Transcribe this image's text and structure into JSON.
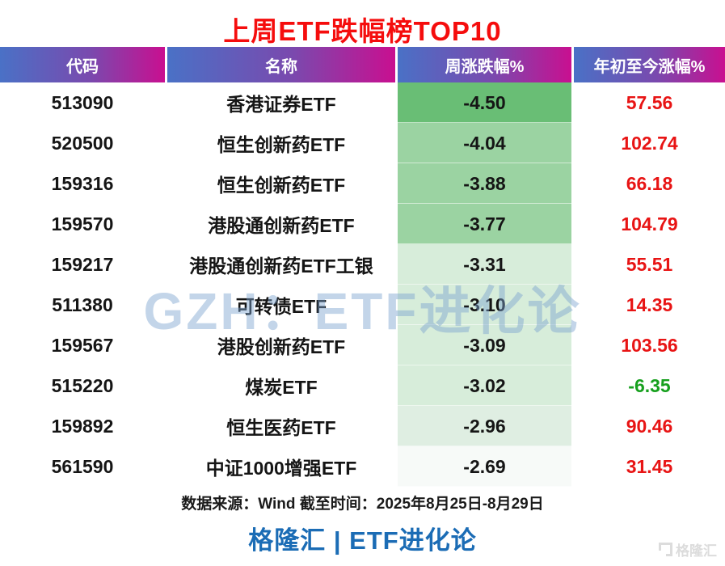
{
  "title": {
    "text": "上周ETF跌幅榜TOP10",
    "color": "#f50d0d"
  },
  "table": {
    "columns": [
      "代码",
      "名称",
      "周涨跌幅%",
      "年初至今涨幅%"
    ],
    "rows": [
      {
        "code": "513090",
        "name": "香港证券ETF",
        "week": "-4.50",
        "ytd": "57.56",
        "week_bg": "#69be75"
      },
      {
        "code": "520500",
        "name": "恒生创新药ETF",
        "week": "-4.04",
        "ytd": "102.74",
        "week_bg": "#9bd3a2"
      },
      {
        "code": "159316",
        "name": "恒生创新药ETF",
        "week": "-3.88",
        "ytd": "66.18",
        "week_bg": "#9bd3a2"
      },
      {
        "code": "159570",
        "name": "港股通创新药ETF",
        "week": "-3.77",
        "ytd": "104.79",
        "week_bg": "#9bd3a2"
      },
      {
        "code": "159217",
        "name": "港股通创新药ETF工银",
        "week": "-3.31",
        "ytd": "55.51",
        "week_bg": "#d7edda"
      },
      {
        "code": "511380",
        "name": "可转债ETF",
        "week": "-3.10",
        "ytd": "14.35",
        "week_bg": "#d7edda"
      },
      {
        "code": "159567",
        "name": "港股创新药ETF",
        "week": "-3.09",
        "ytd": "103.56",
        "week_bg": "#d7edda"
      },
      {
        "code": "515220",
        "name": "煤炭ETF",
        "week": "-3.02",
        "ytd": "-6.35",
        "week_bg": "#d7edda"
      },
      {
        "code": "159892",
        "name": "恒生医药ETF",
        "week": "-2.96",
        "ytd": "90.46",
        "week_bg": "#dfeee2"
      },
      {
        "code": "561590",
        "name": "中证1000增强ETF",
        "week": "-2.69",
        "ytd": "31.45",
        "week_bg": "#f7faf8"
      }
    ]
  },
  "footer": {
    "source": "数据来源：Wind 截至时间：2025年8月25日-8月29日",
    "brand": "格隆汇 | ETF进化论"
  },
  "watermarks": {
    "center": "GZH：ETF进化论",
    "corner_text": "格隆汇"
  },
  "colors": {
    "title_red": "#f50d0d",
    "header_gradient_left": "#4a71c6",
    "header_gradient_right": "#c90f90",
    "value_red": "#e81414",
    "value_green": "#17a01e",
    "brand_blue": "#1b6cb5",
    "heat_dark_green": "#69be75",
    "heat_mid_green": "#9bd3a2",
    "heat_light_green": "#d7edda",
    "heat_near_white": "#f7faf8"
  },
  "chart_data": {
    "type": "table",
    "title": "上周ETF跌幅榜TOP10",
    "columns": [
      "代码",
      "名称",
      "周涨跌幅%",
      "年初至今涨幅%"
    ],
    "rows": [
      [
        "513090",
        "香港证券ETF",
        -4.5,
        57.56
      ],
      [
        "520500",
        "恒生创新药ETF",
        -4.04,
        102.74
      ],
      [
        "159316",
        "恒生创新药ETF",
        -3.88,
        66.18
      ],
      [
        "159570",
        "港股通创新药ETF",
        -3.77,
        104.79
      ],
      [
        "159217",
        "港股通创新药ETF工银",
        -3.31,
        55.51
      ],
      [
        "511380",
        "可转债ETF",
        -3.1,
        14.35
      ],
      [
        "159567",
        "港股创新药ETF",
        -3.09,
        103.56
      ],
      [
        "515220",
        "煤炭ETF",
        -3.02,
        -6.35
      ],
      [
        "159892",
        "恒生医药ETF",
        -2.96,
        90.46
      ],
      [
        "561590",
        "中证1000增强ETF",
        -2.69,
        31.45
      ]
    ],
    "notes": "周涨跌幅% column uses a green heatmap: darker = larger weekly decline; 年初至今涨幅% shown red when positive, green when negative",
    "source": "数据来源：Wind 截至时间：2025年8月25日-8月29日"
  }
}
